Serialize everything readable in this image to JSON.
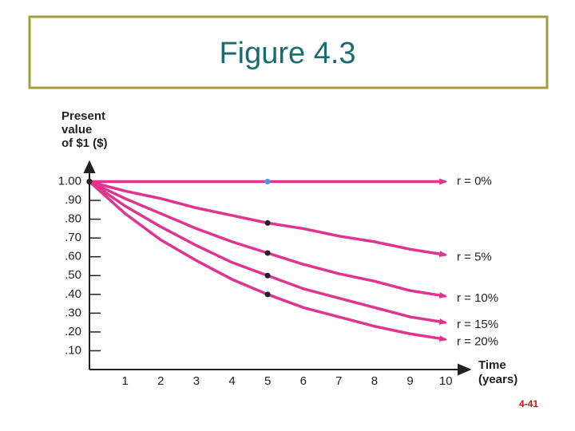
{
  "title": "Figure 4.3",
  "page_number": "4-41",
  "chart_data": {
    "type": "line",
    "ylabel": [
      "Present",
      "value",
      "of $1 ($)"
    ],
    "xlabel": [
      "Time",
      "(years)"
    ],
    "x": [
      0,
      1,
      2,
      3,
      4,
      5,
      6,
      7,
      8,
      9,
      10
    ],
    "xlim": [
      0,
      10.6
    ],
    "xticks": [
      1,
      2,
      3,
      4,
      5,
      6,
      7,
      8,
      9,
      10
    ],
    "ylim": [
      0,
      1.1
    ],
    "yticks": [
      {
        "value": 1.0,
        "label": "1.00"
      },
      {
        "value": 0.9,
        "label": ".90"
      },
      {
        "value": 0.8,
        "label": ".80"
      },
      {
        "value": 0.7,
        "label": ".70"
      },
      {
        "value": 0.6,
        "label": ".60"
      },
      {
        "value": 0.5,
        "label": ".50"
      },
      {
        "value": 0.4,
        "label": ".40"
      },
      {
        "value": 0.3,
        "label": ".30"
      },
      {
        "value": 0.2,
        "label": ".20"
      },
      {
        "value": 0.1,
        "label": ".10"
      }
    ],
    "line_color": "#e0358f",
    "marked_x": [
      0,
      5
    ],
    "series": [
      {
        "name": "r = 0%",
        "marker_color": "#2aa8e0",
        "values": [
          1,
          1,
          1,
          1,
          1,
          1,
          1,
          1,
          1,
          1,
          1
        ]
      },
      {
        "name": "r = 5%",
        "marker_color": "#222222",
        "values": [
          1,
          0.95,
          0.91,
          0.86,
          0.82,
          0.78,
          0.75,
          0.71,
          0.68,
          0.64,
          0.61
        ]
      },
      {
        "name": "r = 10%",
        "marker_color": "#222222",
        "values": [
          1,
          0.91,
          0.83,
          0.75,
          0.68,
          0.62,
          0.56,
          0.51,
          0.47,
          0.42,
          0.39
        ]
      },
      {
        "name": "r = 15%",
        "marker_color": "#222222",
        "values": [
          1,
          0.87,
          0.76,
          0.66,
          0.57,
          0.5,
          0.43,
          0.38,
          0.33,
          0.28,
          0.25
        ]
      },
      {
        "name": "r = 20%",
        "marker_color": "#222222",
        "values": [
          1,
          0.83,
          0.69,
          0.58,
          0.48,
          0.4,
          0.33,
          0.28,
          0.23,
          0.19,
          0.16
        ]
      }
    ]
  }
}
